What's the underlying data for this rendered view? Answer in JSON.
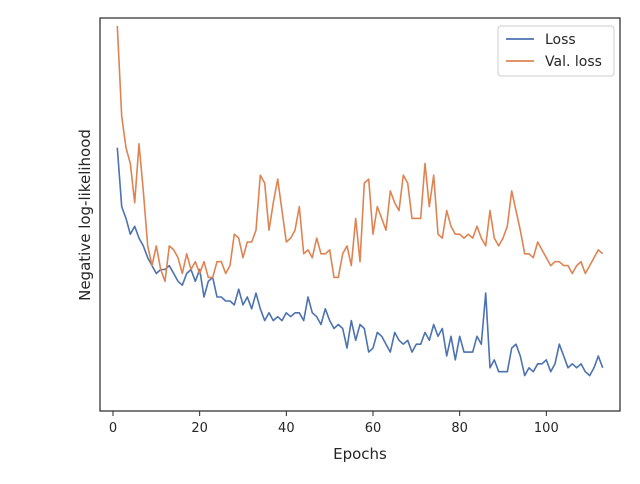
{
  "chart_data": {
    "type": "line",
    "xlabel": "Epochs",
    "ylabel": "Negative log-likelihood",
    "xlim": [
      -3,
      117
    ],
    "ylim": [
      0,
      1
    ],
    "xticks": [
      0,
      20,
      40,
      60,
      80,
      100
    ],
    "yticks_labeled": false,
    "grid": false,
    "legend_position": "top-right",
    "series": [
      {
        "name": "Loss",
        "color": "#4c72b0",
        "x": [
          1,
          2,
          3,
          4,
          5,
          6,
          7,
          8,
          9,
          10,
          11,
          12,
          13,
          14,
          15,
          16,
          17,
          18,
          19,
          20,
          21,
          22,
          23,
          24,
          25,
          26,
          27,
          28,
          29,
          30,
          31,
          32,
          33,
          34,
          35,
          36,
          37,
          38,
          39,
          40,
          41,
          42,
          43,
          44,
          45,
          46,
          47,
          48,
          49,
          50,
          51,
          52,
          53,
          54,
          55,
          56,
          57,
          58,
          59,
          60,
          61,
          62,
          63,
          64,
          65,
          66,
          67,
          68,
          69,
          70,
          71,
          72,
          73,
          74,
          75,
          76,
          77,
          78,
          79,
          80,
          81,
          82,
          83,
          84,
          85,
          86,
          87,
          88,
          89,
          90,
          91,
          92,
          93,
          94,
          95,
          96,
          97,
          98,
          99,
          100,
          101,
          102,
          103,
          104,
          105,
          106,
          107,
          108,
          109,
          110,
          111,
          112,
          113
        ],
        "values": [
          0.67,
          0.52,
          0.49,
          0.45,
          0.47,
          0.44,
          0.42,
          0.39,
          0.37,
          0.35,
          0.36,
          0.36,
          0.37,
          0.35,
          0.33,
          0.32,
          0.35,
          0.36,
          0.33,
          0.36,
          0.29,
          0.33,
          0.34,
          0.29,
          0.29,
          0.28,
          0.28,
          0.27,
          0.31,
          0.27,
          0.29,
          0.26,
          0.3,
          0.26,
          0.23,
          0.25,
          0.23,
          0.24,
          0.23,
          0.25,
          0.24,
          0.25,
          0.25,
          0.23,
          0.29,
          0.25,
          0.24,
          0.22,
          0.26,
          0.23,
          0.21,
          0.22,
          0.21,
          0.16,
          0.23,
          0.18,
          0.22,
          0.21,
          0.15,
          0.16,
          0.2,
          0.19,
          0.17,
          0.15,
          0.2,
          0.18,
          0.17,
          0.18,
          0.15,
          0.17,
          0.17,
          0.2,
          0.18,
          0.22,
          0.19,
          0.21,
          0.14,
          0.19,
          0.13,
          0.19,
          0.15,
          0.15,
          0.15,
          0.19,
          0.17,
          0.3,
          0.11,
          0.13,
          0.1,
          0.1,
          0.1,
          0.16,
          0.17,
          0.14,
          0.09,
          0.11,
          0.1,
          0.12,
          0.12,
          0.13,
          0.1,
          0.12,
          0.17,
          0.14,
          0.11,
          0.12,
          0.11,
          0.12,
          0.1,
          0.09,
          0.11,
          0.14,
          0.11
        ]
      },
      {
        "name": "Val. loss",
        "color": "#dd8452",
        "x": [
          1,
          2,
          3,
          4,
          5,
          6,
          7,
          8,
          9,
          10,
          11,
          12,
          13,
          14,
          15,
          16,
          17,
          18,
          19,
          20,
          21,
          22,
          23,
          24,
          25,
          26,
          27,
          28,
          29,
          30,
          31,
          32,
          33,
          34,
          35,
          36,
          37,
          38,
          39,
          40,
          41,
          42,
          43,
          44,
          45,
          46,
          47,
          48,
          49,
          50,
          51,
          52,
          53,
          54,
          55,
          56,
          57,
          58,
          59,
          60,
          61,
          62,
          63,
          64,
          65,
          66,
          67,
          68,
          69,
          70,
          71,
          72,
          73,
          74,
          75,
          76,
          77,
          78,
          79,
          80,
          81,
          82,
          83,
          84,
          85,
          86,
          87,
          88,
          89,
          90,
          91,
          92,
          93,
          94,
          95,
          96,
          97,
          98,
          99,
          100,
          101,
          102,
          103,
          104,
          105,
          106,
          107,
          108,
          109,
          110,
          111,
          112,
          113
        ],
        "values": [
          0.98,
          0.75,
          0.67,
          0.63,
          0.53,
          0.68,
          0.56,
          0.42,
          0.37,
          0.42,
          0.36,
          0.33,
          0.42,
          0.41,
          0.39,
          0.35,
          0.4,
          0.36,
          0.38,
          0.35,
          0.38,
          0.34,
          0.34,
          0.38,
          0.38,
          0.35,
          0.37,
          0.45,
          0.44,
          0.39,
          0.43,
          0.43,
          0.46,
          0.6,
          0.58,
          0.46,
          0.53,
          0.59,
          0.51,
          0.43,
          0.44,
          0.46,
          0.52,
          0.4,
          0.41,
          0.39,
          0.44,
          0.4,
          0.4,
          0.41,
          0.34,
          0.34,
          0.4,
          0.42,
          0.37,
          0.49,
          0.38,
          0.58,
          0.59,
          0.45,
          0.52,
          0.49,
          0.46,
          0.56,
          0.53,
          0.51,
          0.6,
          0.58,
          0.49,
          0.49,
          0.49,
          0.63,
          0.52,
          0.6,
          0.45,
          0.44,
          0.51,
          0.47,
          0.45,
          0.45,
          0.44,
          0.45,
          0.44,
          0.47,
          0.44,
          0.42,
          0.51,
          0.44,
          0.42,
          0.44,
          0.47,
          0.56,
          0.51,
          0.46,
          0.4,
          0.4,
          0.39,
          0.43,
          0.41,
          0.39,
          0.37,
          0.38,
          0.38,
          0.37,
          0.37,
          0.35,
          0.37,
          0.38,
          0.35,
          0.37,
          0.39,
          0.41,
          0.4
        ]
      }
    ]
  }
}
